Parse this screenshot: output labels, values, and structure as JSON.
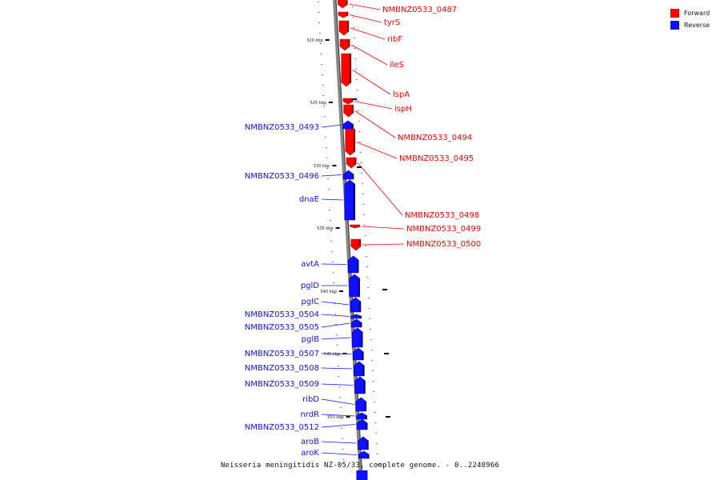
{
  "caption": "Neisseria meningitidis NZ-05/33, complete genome. - 0..2248966",
  "legend": {
    "forward_label": "Forward",
    "reverse_label": "Reverse",
    "forward_color": "#ff0000",
    "reverse_color": "#1010ff"
  },
  "scale_labels": [
    "520 kbp",
    "525 kbp",
    "530 kbp",
    "535 kbp",
    "540 kbp",
    "545 kbp",
    "550 kbp"
  ],
  "forward_genes": [
    "NMBNZ0533_0487",
    "tyrS",
    "ribF",
    "ileS",
    "lspA",
    "ispH",
    "NMBNZ0533_0494",
    "NMBNZ0533_0495",
    "NMBNZ0533_0498",
    "NMBNZ0533_0499",
    "NMBNZ0533_0500"
  ],
  "reverse_genes": [
    "NMBNZ0533_0493",
    "NMBNZ0533_0496",
    "dnaE",
    "avtA",
    "pglD",
    "pglC",
    "NMBNZ0533_0504",
    "NMBNZ0533_0505",
    "pglB",
    "NMBNZ0533_0507",
    "NMBNZ0533_0508",
    "NMBNZ0533_0509",
    "ribD",
    "nrdR",
    "NMBNZ0533_0512",
    "aroB",
    "aroK"
  ]
}
